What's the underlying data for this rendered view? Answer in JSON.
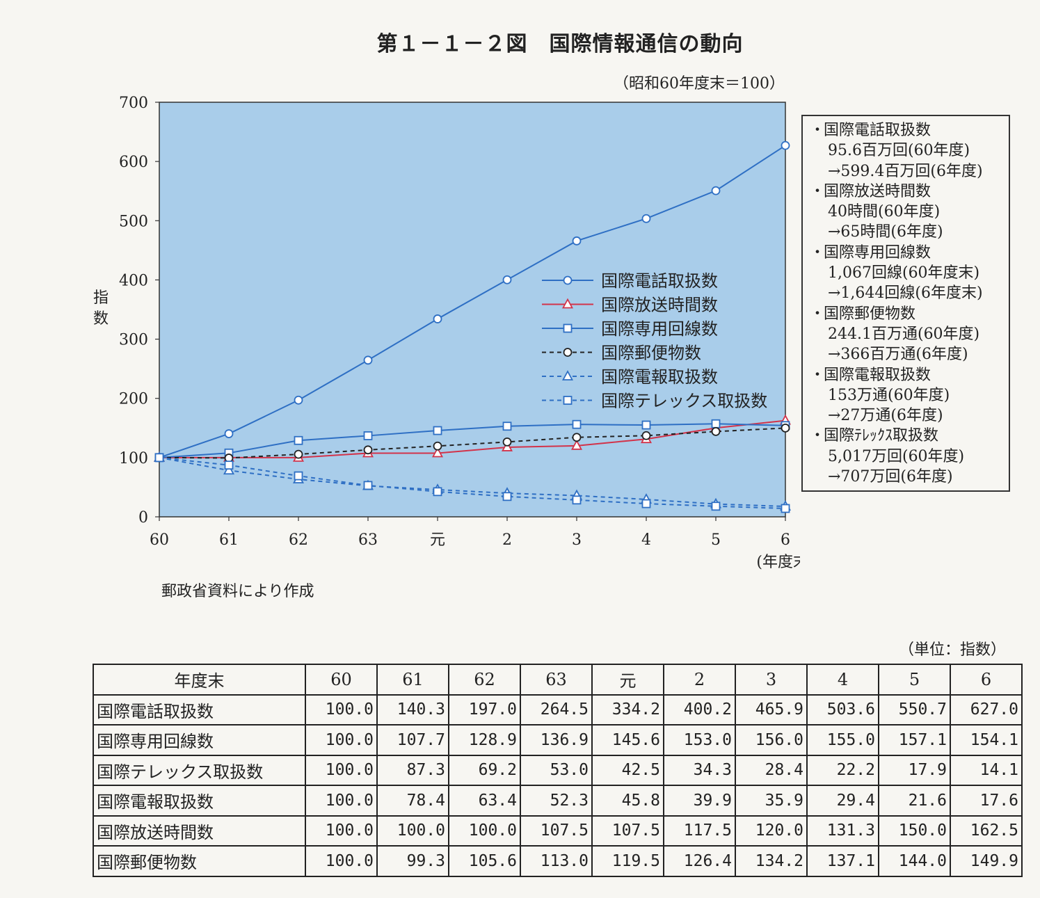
{
  "title": "第１－１－２図　国際情報通信の動向",
  "base_note": "（昭和60年度末＝100）",
  "y_axis_label": "指数",
  "x_axis_unit": "(年度末)",
  "source": "郵政省資料により作成",
  "notes": [
    {
      "head": "国際電話取扱数",
      "lines": [
        "95.6百万回(60年度)",
        "→599.4百万回(6年度)"
      ]
    },
    {
      "head": "国際放送時間数",
      "lines": [
        "40時間(60年度)",
        "→65時間(6年度)"
      ]
    },
    {
      "head": "国際専用回線数",
      "lines": [
        "1,067回線(60年度末)",
        "→1,644回線(6年度末)"
      ]
    },
    {
      "head": "国際郵便物数",
      "lines": [
        "244.1百万通(60年度)",
        "→366百万通(6年度)"
      ]
    },
    {
      "head": "国際電報取扱数",
      "lines": [
        "153万通(60年度)",
        "→27万通(6年度)"
      ]
    },
    {
      "head": "国際ﾃﾚｯｸｽ取扱数",
      "lines": [
        "5,017万回(60年度)",
        "→707万回(6年度)"
      ]
    }
  ],
  "table": {
    "unit": "（単位：指数）",
    "corner": "年度末",
    "columns": [
      "60",
      "61",
      "62",
      "63",
      "元",
      "2",
      "3",
      "4",
      "5",
      "6"
    ],
    "rows": [
      {
        "label": "国際電話取扱数",
        "values": [
          "100.0",
          "140.3",
          "197.0",
          "264.5",
          "334.2",
          "400.2",
          "465.9",
          "503.6",
          "550.7",
          "627.0"
        ]
      },
      {
        "label": "国際専用回線数",
        "values": [
          "100.0",
          "107.7",
          "128.9",
          "136.9",
          "145.6",
          "153.0",
          "156.0",
          "155.0",
          "157.1",
          "154.1"
        ]
      },
      {
        "label": "国際テレックス取扱数",
        "values": [
          "100.0",
          "87.3",
          "69.2",
          "53.0",
          "42.5",
          "34.3",
          "28.4",
          "22.2",
          "17.9",
          "14.1"
        ]
      },
      {
        "label": "国際電報取扱数",
        "values": [
          "100.0",
          "78.4",
          "63.4",
          "52.3",
          "45.8",
          "39.9",
          "35.9",
          "29.4",
          "21.6",
          "17.6"
        ]
      },
      {
        "label": "国際放送時間数",
        "values": [
          "100.0",
          "100.0",
          "100.0",
          "107.5",
          "107.5",
          "117.5",
          "120.0",
          "131.3",
          "150.0",
          "162.5"
        ]
      },
      {
        "label": "国際郵便物数",
        "values": [
          "100.0",
          "99.3",
          "105.6",
          "113.0",
          "119.5",
          "126.4",
          "134.2",
          "137.1",
          "144.0",
          "149.9"
        ]
      }
    ]
  },
  "chart_data": {
    "type": "line",
    "categories": [
      "60",
      "61",
      "62",
      "63",
      "元",
      "2",
      "3",
      "4",
      "5",
      "6"
    ],
    "ylim": [
      0,
      700
    ],
    "yticks": [
      0,
      100,
      200,
      300,
      400,
      500,
      600,
      700
    ],
    "plot_background": "#a9cdea",
    "series": [
      {
        "name": "国際電話取扱数",
        "color": "#2e6fc4",
        "marker": "circle",
        "dashed": false,
        "values": [
          100.0,
          140.3,
          197.0,
          264.5,
          334.2,
          400.2,
          465.9,
          503.6,
          550.7,
          627.0
        ]
      },
      {
        "name": "国際放送時間数",
        "color": "#d2334a",
        "marker": "triangle",
        "dashed": false,
        "values": [
          100.0,
          100.0,
          100.0,
          107.5,
          107.5,
          117.5,
          120.0,
          131.3,
          150.0,
          162.5
        ]
      },
      {
        "name": "国際専用回線数",
        "color": "#2e6fc4",
        "marker": "square",
        "dashed": false,
        "values": [
          100.0,
          107.7,
          128.9,
          136.9,
          145.6,
          153.0,
          156.0,
          155.0,
          157.1,
          154.1
        ]
      },
      {
        "name": "国際郵便物数",
        "color": "#222222",
        "marker": "circle",
        "dashed": true,
        "values": [
          100.0,
          99.3,
          105.6,
          113.0,
          119.5,
          126.4,
          134.2,
          137.1,
          144.0,
          149.9
        ]
      },
      {
        "name": "国際電報取扱数",
        "color": "#2e6fc4",
        "marker": "triangle",
        "dashed": true,
        "values": [
          100.0,
          78.4,
          63.4,
          52.3,
          45.8,
          39.9,
          35.9,
          29.4,
          21.6,
          17.6
        ]
      },
      {
        "name": "国際テレックス取扱数",
        "color": "#2e6fc4",
        "marker": "square",
        "dashed": true,
        "values": [
          100.0,
          87.3,
          69.2,
          53.0,
          42.5,
          34.3,
          28.4,
          22.2,
          17.9,
          14.1
        ]
      }
    ]
  }
}
